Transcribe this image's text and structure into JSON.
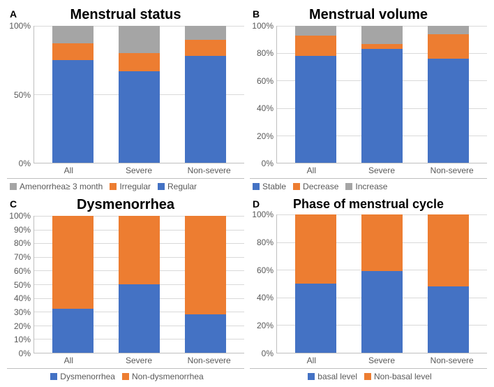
{
  "colors": {
    "blue": "#4472c4",
    "orange": "#ed7d31",
    "gray": "#a5a5a5",
    "grid": "#d9d9d9",
    "axis": "#bfbfbf",
    "text": "#595959",
    "bg": "#ffffff"
  },
  "panels": {
    "A": {
      "label": "A",
      "title": "Menstrual status",
      "title_fontsize": 20,
      "type": "stacked_bar_100",
      "categories": [
        "All",
        "Severe",
        "Non-severe"
      ],
      "series": [
        {
          "name": "Regular",
          "color": "#4472c4"
        },
        {
          "name": "Irregular",
          "color": "#ed7d31"
        },
        {
          "name": "Amenorrhea≥ 3 month",
          "color": "#a5a5a5"
        }
      ],
      "values": [
        [
          75,
          12,
          13
        ],
        [
          67,
          13,
          20
        ],
        [
          78,
          12,
          10
        ]
      ],
      "y_ticks": [
        "100%",
        "50%",
        "0%"
      ],
      "legend_order": [
        "Amenorrhea≥ 3 month",
        "Irregular",
        "Regular"
      ]
    },
    "B": {
      "label": "B",
      "title": "Menstrual volume",
      "title_fontsize": 20,
      "type": "stacked_bar_100",
      "categories": [
        "All",
        "Severe",
        "Non-severe"
      ],
      "series": [
        {
          "name": "Stable",
          "color": "#4472c4"
        },
        {
          "name": "Decrease",
          "color": "#ed7d31"
        },
        {
          "name": "Increase",
          "color": "#a5a5a5"
        }
      ],
      "values": [
        [
          78,
          15,
          7
        ],
        [
          83,
          4,
          13
        ],
        [
          76,
          18,
          6
        ]
      ],
      "y_ticks": [
        "100%",
        "80%",
        "60%",
        "40%",
        "20%",
        "0%"
      ],
      "legend_order": [
        "Stable",
        "Decrease",
        "Increase"
      ]
    },
    "C": {
      "label": "C",
      "title": "Dysmenorrhea",
      "title_fontsize": 20,
      "type": "stacked_bar_100",
      "categories": [
        "All",
        "Severe",
        "Non-severe"
      ],
      "series": [
        {
          "name": "Dysmenorrhea",
          "color": "#4472c4"
        },
        {
          "name": "Non-dysmenorrhea",
          "color": "#ed7d31"
        }
      ],
      "values": [
        [
          32,
          68
        ],
        [
          50,
          50
        ],
        [
          28,
          72
        ]
      ],
      "y_ticks": [
        "100%",
        "90%",
        "80%",
        "70%",
        "60%",
        "50%",
        "40%",
        "30%",
        "20%",
        "10%",
        "0%"
      ],
      "legend_order": [
        "Dysmenorrhea",
        "Non-dysmenorrhea"
      ]
    },
    "D": {
      "label": "D",
      "title": "Phase of menstrual cycle",
      "title_fontsize": 18,
      "type": "stacked_bar_100",
      "categories": [
        "All",
        "Severe",
        "Non-severe"
      ],
      "series": [
        {
          "name": "basal level",
          "color": "#4472c4"
        },
        {
          "name": "Non-basal level",
          "color": "#ed7d31"
        }
      ],
      "values": [
        [
          50,
          50
        ],
        [
          59,
          41
        ],
        [
          48,
          52
        ]
      ],
      "y_ticks": [
        "100%",
        "80%",
        "60%",
        "40%",
        "20%",
        "0%"
      ],
      "legend_order": [
        "basal level",
        "Non-basal level"
      ]
    }
  }
}
